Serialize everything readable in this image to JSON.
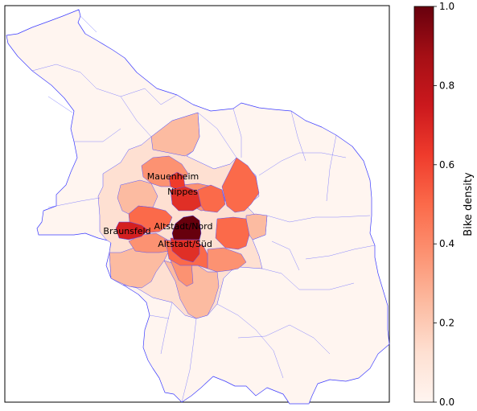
{
  "map": {
    "type": "choropleth",
    "colormap": "Reds",
    "district_border_color": "#3b3bff",
    "district_labels": [
      {
        "name": "Mauenheim",
        "density": 0.62
      },
      {
        "name": "Nippes",
        "density": 0.72
      },
      {
        "name": "Braunsfeld",
        "density": 0.78
      },
      {
        "name": "Altstadt/Nord",
        "density": 1.0
      },
      {
        "name": "Altstadt/Süd",
        "density": 0.72
      }
    ]
  },
  "colorbar": {
    "label": "Bike density",
    "ticks": [
      "0.0",
      "0.2",
      "0.4",
      "0.6",
      "0.8",
      "1.0"
    ],
    "range": [
      0,
      1
    ]
  }
}
